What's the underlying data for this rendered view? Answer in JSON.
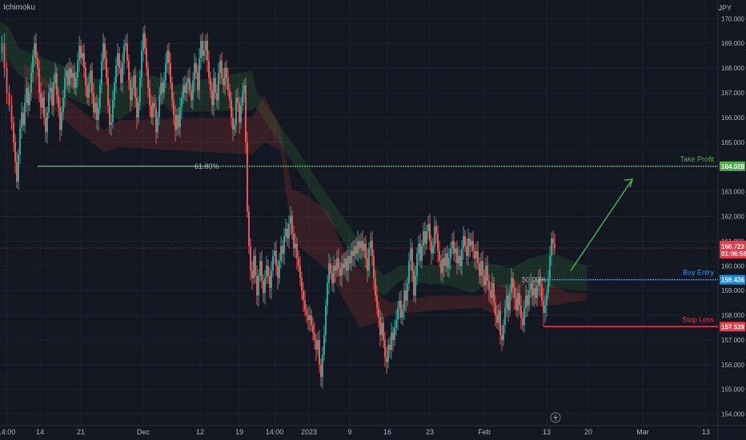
{
  "header": {
    "indicator": "Ichimoku",
    "currency": "JPY"
  },
  "chart_data": {
    "type": "candlestick",
    "title": "",
    "ylim": [
      153.6,
      170.3
    ],
    "y_ticks": [
      "154.000",
      "155.000",
      "156.000",
      "157.000",
      "158.000",
      "159.000",
      "160.000",
      "161.000",
      "162.000",
      "163.000",
      "164.000",
      "165.000",
      "166.000",
      "167.000",
      "168.000",
      "169.000",
      "170.000"
    ],
    "x_ticks": [
      "14:00",
      "14",
      "21",
      "Dec",
      "12",
      "19",
      "14:00",
      "2023",
      "9",
      "16",
      "23",
      "Feb",
      "13",
      "20",
      "Mar",
      "13"
    ],
    "close_path": [
      [
        0,
        168.6
      ],
      [
        3,
        169.0
      ],
      [
        6,
        168.0
      ],
      [
        9,
        167.0
      ],
      [
        12,
        166.5
      ],
      [
        15,
        165.8
      ],
      [
        17,
        165.0
      ],
      [
        19,
        164.2
      ],
      [
        21,
        163.4
      ],
      [
        23,
        164.5
      ],
      [
        25,
        165.6
      ],
      [
        27,
        166.2
      ],
      [
        29,
        165.7
      ],
      [
        31,
        166.6
      ],
      [
        33,
        167.2
      ],
      [
        35,
        166.5
      ],
      [
        37,
        167.0
      ],
      [
        39,
        167.8
      ],
      [
        41,
        168.5
      ],
      [
        43,
        169.0
      ],
      [
        45,
        168.4
      ],
      [
        47,
        168.0
      ],
      [
        49,
        167.0
      ],
      [
        51,
        166.4
      ],
      [
        53,
        166.8
      ],
      [
        55,
        166.0
      ],
      [
        57,
        165.4
      ],
      [
        59,
        166.2
      ],
      [
        61,
        167.0
      ],
      [
        63,
        167.2
      ],
      [
        65,
        166.5
      ],
      [
        67,
        167.4
      ],
      [
        69,
        167.8
      ],
      [
        71,
        166.9
      ],
      [
        73,
        166.4
      ],
      [
        75,
        165.5
      ],
      [
        77,
        166.2
      ],
      [
        79,
        166.8
      ],
      [
        81,
        167.6
      ],
      [
        83,
        167.9
      ],
      [
        85,
        167.3
      ],
      [
        87,
        168.0
      ],
      [
        89,
        167.6
      ],
      [
        91,
        167.8
      ],
      [
        93,
        167.2
      ],
      [
        95,
        167.6
      ],
      [
        97,
        168.3
      ],
      [
        99,
        168.9
      ],
      [
        101,
        168.4
      ],
      [
        103,
        168.6
      ],
      [
        105,
        168.0
      ],
      [
        107,
        167.3
      ],
      [
        109,
        166.8
      ],
      [
        111,
        167.4
      ],
      [
        113,
        167.9
      ],
      [
        115,
        167.0
      ],
      [
        117,
        166.2
      ],
      [
        119,
        166.6
      ],
      [
        121,
        165.9
      ],
      [
        123,
        166.4
      ],
      [
        125,
        167.3
      ],
      [
        127,
        168.3
      ],
      [
        129,
        169.0
      ],
      [
        131,
        168.4
      ],
      [
        133,
        167.6
      ],
      [
        135,
        166.5
      ],
      [
        137,
        165.7
      ],
      [
        139,
        165.8
      ],
      [
        141,
        166.7
      ],
      [
        143,
        167.4
      ],
      [
        145,
        168.1
      ],
      [
        147,
        168.6
      ],
      [
        149,
        168.0
      ],
      [
        151,
        167.4
      ],
      [
        153,
        168.2
      ],
      [
        155,
        168.9
      ],
      [
        157,
        169.0
      ],
      [
        159,
        168.3
      ],
      [
        161,
        167.5
      ],
      [
        163,
        166.7
      ],
      [
        165,
        167.2
      ],
      [
        167,
        167.7
      ],
      [
        169,
        166.8
      ],
      [
        171,
        166.0
      ],
      [
        173,
        166.6
      ],
      [
        175,
        167.6
      ],
      [
        177,
        168.7
      ],
      [
        179,
        169.4
      ],
      [
        181,
        168.8
      ],
      [
        183,
        168.0
      ],
      [
        185,
        167.2
      ],
      [
        187,
        166.5
      ],
      [
        189,
        166.0
      ],
      [
        191,
        166.6
      ],
      [
        193,
        166.4
      ],
      [
        195,
        165.4
      ],
      [
        197,
        166.0
      ],
      [
        199,
        166.9
      ],
      [
        201,
        167.4
      ],
      [
        203,
        167.0
      ],
      [
        205,
        167.5
      ],
      [
        207,
        168.2
      ],
      [
        209,
        168.7
      ],
      [
        211,
        168.2
      ],
      [
        213,
        167.4
      ],
      [
        215,
        166.7
      ],
      [
        217,
        166.1
      ],
      [
        219,
        165.5
      ],
      [
        221,
        166.1
      ],
      [
        223,
        165.6
      ],
      [
        225,
        166.4
      ],
      [
        227,
        166.8
      ],
      [
        229,
        167.3
      ],
      [
        231,
        167.0
      ],
      [
        233,
        167.4
      ],
      [
        235,
        167.6
      ],
      [
        237,
        167.1
      ],
      [
        239,
        166.7
      ],
      [
        241,
        167.5
      ],
      [
        243,
        168.2
      ],
      [
        245,
        167.8
      ],
      [
        247,
        167.1
      ],
      [
        249,
        168.4
      ],
      [
        251,
        169.1
      ],
      [
        253,
        168.5
      ],
      [
        255,
        168.7
      ],
      [
        257,
        169.1
      ],
      [
        259,
        168.3
      ],
      [
        261,
        167.6
      ],
      [
        263,
        167.1
      ],
      [
        265,
        166.5
      ],
      [
        267,
        167.6
      ],
      [
        269,
        167.0
      ],
      [
        271,
        166.7
      ],
      [
        273,
        167.8
      ],
      [
        275,
        168.3
      ],
      [
        277,
        167.6
      ],
      [
        279,
        167.3
      ],
      [
        281,
        168.0
      ],
      [
        283,
        167.6
      ],
      [
        285,
        167.1
      ],
      [
        287,
        166.7
      ],
      [
        289,
        166.0
      ],
      [
        291,
        165.5
      ],
      [
        293,
        165.7
      ],
      [
        295,
        166.8
      ],
      [
        297,
        166.6
      ],
      [
        299,
        165.8
      ],
      [
        301,
        166.5
      ],
      [
        303,
        167.0
      ],
      [
        305,
        167.3
      ],
      [
        307,
        165.0
      ],
      [
        309,
        162.2
      ],
      [
        311,
        160.8
      ],
      [
        313,
        159.8
      ],
      [
        315,
        159.5
      ],
      [
        317,
        160.4
      ],
      [
        319,
        159.6
      ],
      [
        321,
        158.8
      ],
      [
        323,
        159.6
      ],
      [
        325,
        160.2
      ],
      [
        327,
        159.4
      ],
      [
        329,
        158.9
      ],
      [
        331,
        159.5
      ],
      [
        333,
        160.0
      ],
      [
        335,
        159.6
      ],
      [
        337,
        159.1
      ],
      [
        339,
        159.8
      ],
      [
        341,
        160.4
      ],
      [
        343,
        160.6
      ],
      [
        345,
        160.0
      ],
      [
        347,
        159.5
      ],
      [
        349,
        160.2
      ],
      [
        351,
        160.8
      ],
      [
        353,
        160.5
      ],
      [
        355,
        161.2
      ],
      [
        357,
        161.5
      ],
      [
        359,
        161.1
      ],
      [
        361,
        161.7
      ],
      [
        363,
        162.0
      ],
      [
        365,
        161.3
      ],
      [
        367,
        160.7
      ],
      [
        369,
        160.9
      ],
      [
        371,
        160.3
      ],
      [
        373,
        160.0
      ],
      [
        375,
        159.5
      ],
      [
        377,
        159.0
      ],
      [
        379,
        158.6
      ],
      [
        381,
        158.2
      ],
      [
        383,
        158.0
      ],
      [
        385,
        157.8
      ],
      [
        387,
        158.0
      ],
      [
        389,
        157.6
      ],
      [
        391,
        157.3
      ],
      [
        393,
        157.0
      ],
      [
        395,
        156.6
      ],
      [
        397,
        157.0
      ],
      [
        399,
        156.0
      ],
      [
        401,
        155.5
      ],
      [
        403,
        156.4
      ],
      [
        405,
        157.2
      ],
      [
        407,
        158.4
      ],
      [
        409,
        159.3
      ],
      [
        411,
        160.1
      ],
      [
        413,
        159.7
      ],
      [
        415,
        159.3
      ],
      [
        417,
        160.0
      ],
      [
        419,
        159.8
      ],
      [
        421,
        160.3
      ],
      [
        423,
        159.9
      ],
      [
        425,
        159.6
      ],
      [
        427,
        160.1
      ],
      [
        429,
        159.9
      ],
      [
        431,
        160.3
      ],
      [
        433,
        159.8
      ],
      [
        435,
        160.4
      ],
      [
        437,
        160.1
      ],
      [
        439,
        160.6
      ],
      [
        441,
        160.4
      ],
      [
        443,
        160.8
      ],
      [
        445,
        160.5
      ],
      [
        447,
        161.0
      ],
      [
        449,
        160.7
      ],
      [
        451,
        161.0
      ],
      [
        453,
        160.6
      ],
      [
        455,
        160.9
      ],
      [
        457,
        160.3
      ],
      [
        459,
        159.8
      ],
      [
        461,
        160.7
      ],
      [
        463,
        161.0
      ],
      [
        465,
        160.4
      ],
      [
        467,
        159.5
      ],
      [
        469,
        158.8
      ],
      [
        471,
        158.3
      ],
      [
        473,
        157.9
      ],
      [
        475,
        157.2
      ],
      [
        477,
        157.7
      ],
      [
        479,
        157.0
      ],
      [
        481,
        156.3
      ],
      [
        483,
        156.1
      ],
      [
        485,
        156.8
      ],
      [
        487,
        156.6
      ],
      [
        489,
        157.3
      ],
      [
        491,
        157.0
      ],
      [
        493,
        157.5
      ],
      [
        495,
        157.8
      ],
      [
        497,
        158.3
      ],
      [
        499,
        158.6
      ],
      [
        501,
        157.9
      ],
      [
        503,
        158.2
      ],
      [
        505,
        159.0
      ],
      [
        507,
        158.6
      ],
      [
        509,
        159.3
      ],
      [
        511,
        160.2
      ],
      [
        513,
        160.7
      ],
      [
        515,
        159.8
      ],
      [
        517,
        158.8
      ],
      [
        519,
        159.6
      ],
      [
        521,
        160.5
      ],
      [
        523,
        160.9
      ],
      [
        525,
        160.2
      ],
      [
        527,
        160.8
      ],
      [
        529,
        161.4
      ],
      [
        531,
        160.9
      ],
      [
        533,
        161.4
      ],
      [
        535,
        161.7
      ],
      [
        537,
        161.0
      ],
      [
        539,
        160.5
      ],
      [
        541,
        160.8
      ],
      [
        543,
        161.6
      ],
      [
        545,
        161.3
      ],
      [
        547,
        160.6
      ],
      [
        549,
        160.2
      ],
      [
        551,
        159.7
      ],
      [
        553,
        160.3
      ],
      [
        555,
        160.0
      ],
      [
        557,
        160.5
      ],
      [
        559,
        159.9
      ],
      [
        561,
        160.3
      ],
      [
        563,
        160.7
      ],
      [
        565,
        161.0
      ],
      [
        567,
        160.5
      ],
      [
        569,
        160.7
      ],
      [
        571,
        160.1
      ],
      [
        573,
        160.4
      ],
      [
        575,
        160.0
      ],
      [
        577,
        160.7
      ],
      [
        579,
        161.2
      ],
      [
        581,
        160.8
      ],
      [
        583,
        160.4
      ],
      [
        585,
        161.1
      ],
      [
        587,
        160.8
      ],
      [
        589,
        161.0
      ],
      [
        591,
        160.6
      ],
      [
        593,
        160.3
      ],
      [
        595,
        160.6
      ],
      [
        597,
        160.1
      ],
      [
        599,
        159.6
      ],
      [
        601,
        160.2
      ],
      [
        603,
        159.6
      ],
      [
        605,
        159.2
      ],
      [
        607,
        160.0
      ],
      [
        609,
        159.4
      ],
      [
        611,
        159.0
      ],
      [
        613,
        158.7
      ],
      [
        615,
        159.3
      ],
      [
        617,
        158.5
      ],
      [
        619,
        158.0
      ],
      [
        621,
        157.7
      ],
      [
        623,
        158.2
      ],
      [
        625,
        157.2
      ],
      [
        627,
        157.0
      ],
      [
        629,
        157.6
      ],
      [
        631,
        158.3
      ],
      [
        633,
        158.8
      ],
      [
        635,
        158.2
      ],
      [
        637,
        158.9
      ],
      [
        639,
        159.5
      ],
      [
        641,
        159.1
      ],
      [
        643,
        158.7
      ],
      [
        645,
        158.2
      ],
      [
        647,
        158.9
      ],
      [
        649,
        158.4
      ],
      [
        651,
        157.9
      ],
      [
        653,
        157.6
      ],
      [
        655,
        158.3
      ],
      [
        657,
        158.8
      ],
      [
        659,
        158.4
      ],
      [
        661,
        159.0
      ],
      [
        663,
        159.3
      ],
      [
        665,
        158.8
      ],
      [
        667,
        159.1
      ],
      [
        669,
        158.7
      ],
      [
        671,
        159.2
      ],
      [
        673,
        159.5
      ],
      [
        675,
        159.2
      ],
      [
        677,
        158.6
      ],
      [
        679,
        158.1
      ],
      [
        681,
        158.4
      ],
      [
        683,
        158.9
      ],
      [
        685,
        159.5
      ],
      [
        687,
        160.4
      ],
      [
        689,
        161.1
      ],
      [
        691,
        160.9
      ],
      [
        693,
        160.7
      ]
    ],
    "cloud_green": [
      [
        0,
        169.9,
        168.2
      ],
      [
        12,
        169.6,
        168.3
      ],
      [
        24,
        168.8,
        167.7
      ],
      [
        150,
        167.2,
        165.9
      ],
      [
        170,
        167.9,
        166.4
      ],
      [
        200,
        167.6,
        166.7
      ],
      [
        215,
        167.3,
        166.2
      ],
      [
        315,
        167.9,
        166.3
      ],
      [
        320,
        167.1,
        166.4
      ],
      [
        470,
        160.0,
        159.0
      ],
      [
        480,
        159.6,
        158.8
      ],
      [
        500,
        160.0,
        159.4
      ],
      [
        560,
        160.0,
        159.2
      ],
      [
        590,
        160.2,
        158.9
      ],
      [
        612,
        160.1,
        159.3
      ],
      [
        640,
        159.9,
        159.0
      ],
      [
        660,
        160.3,
        159.3
      ],
      [
        690,
        160.5,
        159.1
      ],
      [
        733,
        160.0,
        159.0
      ]
    ],
    "cloud_red": [
      [
        30,
        168.2,
        166.9
      ],
      [
        60,
        167.5,
        166.6
      ],
      [
        90,
        166.6,
        165.6
      ],
      [
        130,
        165.5,
        164.6
      ],
      [
        150,
        165.9,
        164.8
      ],
      [
        315,
        166.0,
        164.5
      ],
      [
        330,
        166.9,
        165.0
      ],
      [
        350,
        165.6,
        164.7
      ],
      [
        365,
        163.1,
        161.1
      ],
      [
        380,
        162.9,
        160.6
      ],
      [
        410,
        162.2,
        159.8
      ],
      [
        430,
        160.6,
        158.6
      ],
      [
        450,
        159.9,
        157.5
      ],
      [
        470,
        159.0,
        157.7
      ],
      [
        485,
        158.5,
        158.0
      ],
      [
        540,
        158.8,
        158.2
      ],
      [
        600,
        158.8,
        158.3
      ],
      [
        620,
        159.2,
        158.0
      ],
      [
        660,
        159.4,
        158.3
      ],
      [
        690,
        159.2,
        158.4
      ],
      [
        710,
        158.9,
        158.5
      ],
      [
        733,
        158.9,
        158.6
      ]
    ],
    "levels": [
      {
        "name": "Take Profit",
        "value": 164.028,
        "label": "164.028",
        "color": "#4caf50"
      },
      {
        "name": "Buy Entry",
        "value": 159.436,
        "label": "159.436",
        "color": "#2962ff"
      },
      {
        "name": "Stop Loss",
        "value": 157.539,
        "label": "157.539",
        "color": "#f23645"
      }
    ],
    "fib": [
      {
        "label": "61.80%",
        "value": 164.028
      },
      {
        "label": "50.00%",
        "value": 159.436
      }
    ],
    "current_price": {
      "value": 160.723,
      "label": "160.723",
      "countdown": "01:06:58",
      "color": "#f23645"
    }
  }
}
